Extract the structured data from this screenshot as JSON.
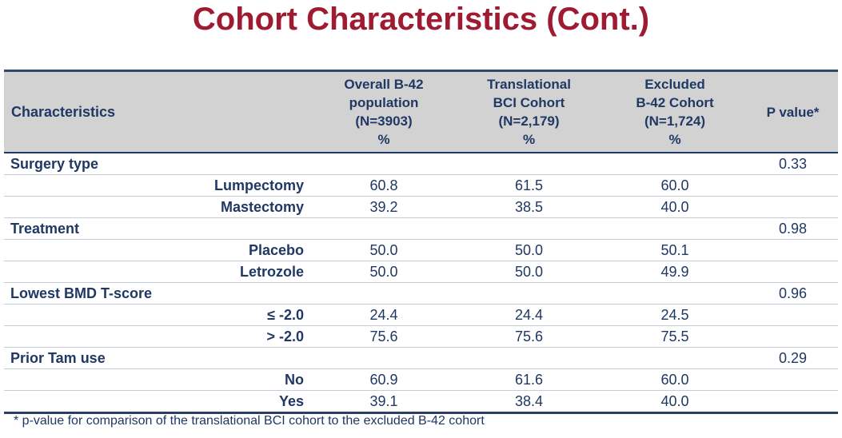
{
  "slide": {
    "title": "Cohort Characteristics (Cont.)",
    "footnote": "* p-value for comparison of the translational BCI cohort to the excluded B-42 cohort"
  },
  "colors": {
    "title_red": "#9E1B32",
    "text_navy": "#1F3864",
    "header_bg": "#D2D2D2",
    "row_separator": "#C3CCD8"
  },
  "table": {
    "columns": [
      {
        "label": "Characteristics"
      },
      {
        "label": "Overall B-42\npopulation\n(N=3903)\n%"
      },
      {
        "label": "Translational\nBCI Cohort\n(N=2,179)\n%"
      },
      {
        "label": "Excluded\nB-42 Cohort\n(N=1,724)\n%"
      },
      {
        "label": "P value*"
      }
    ],
    "rows": [
      {
        "type": "category",
        "label": "Surgery type",
        "values": [
          "",
          "",
          ""
        ],
        "p": "0.33"
      },
      {
        "type": "item",
        "label": "Lumpectomy",
        "values": [
          "60.8",
          "61.5",
          "60.0"
        ],
        "p": ""
      },
      {
        "type": "item",
        "label": "Mastectomy",
        "values": [
          "39.2",
          "38.5",
          "40.0"
        ],
        "p": ""
      },
      {
        "type": "category",
        "label": "Treatment",
        "values": [
          "",
          "",
          ""
        ],
        "p": "0.98"
      },
      {
        "type": "item",
        "label": "Placebo",
        "values": [
          "50.0",
          "50.0",
          "50.1"
        ],
        "p": ""
      },
      {
        "type": "item",
        "label": "Letrozole",
        "values": [
          "50.0",
          "50.0",
          "49.9"
        ],
        "p": ""
      },
      {
        "type": "category",
        "label": "Lowest BMD T-score",
        "values": [
          "",
          "",
          ""
        ],
        "p": "0.96"
      },
      {
        "type": "item",
        "label": "≤ -2.0",
        "values": [
          "24.4",
          "24.4",
          "24.5"
        ],
        "p": ""
      },
      {
        "type": "item",
        "label": "> -2.0",
        "values": [
          "75.6",
          "75.6",
          "75.5"
        ],
        "p": ""
      },
      {
        "type": "category",
        "label": "Prior Tam use",
        "values": [
          "",
          "",
          ""
        ],
        "p": "0.29"
      },
      {
        "type": "item",
        "label": "No",
        "values": [
          "60.9",
          "61.6",
          "60.0"
        ],
        "p": ""
      },
      {
        "type": "item",
        "label": "Yes",
        "values": [
          "39.1",
          "38.4",
          "40.0"
        ],
        "p": ""
      }
    ]
  }
}
